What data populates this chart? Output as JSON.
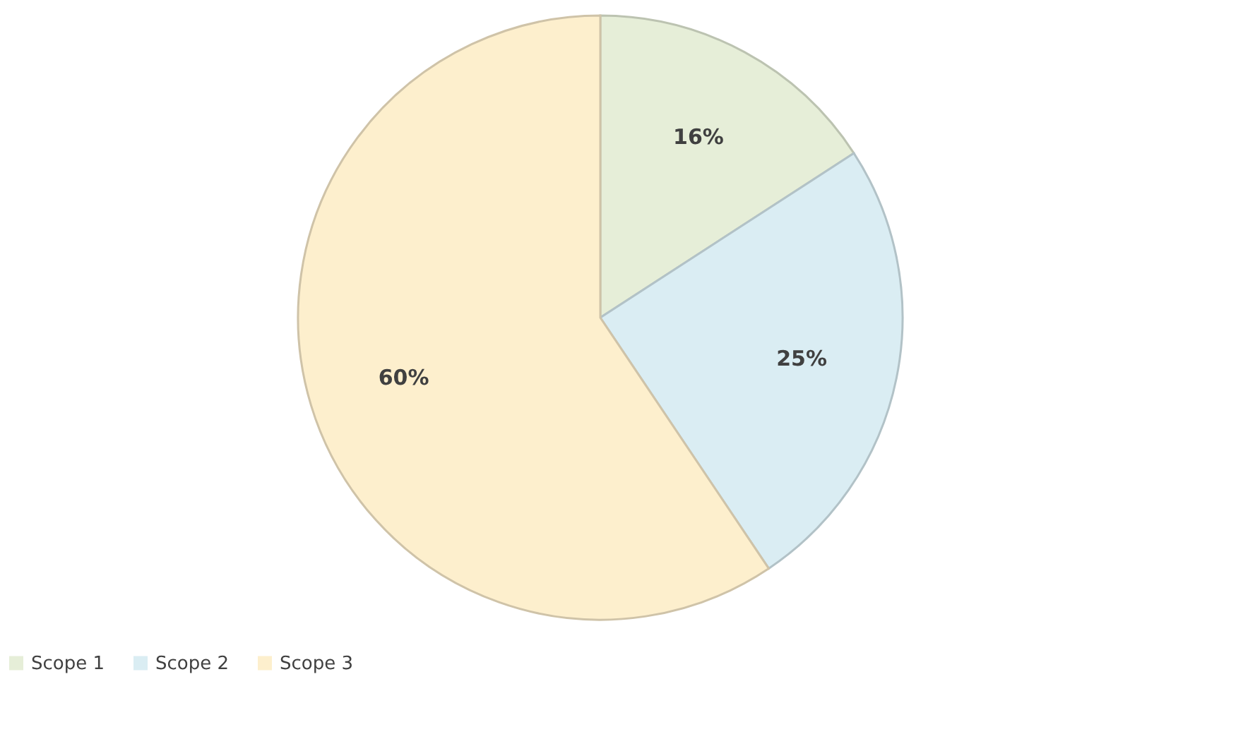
{
  "chart_data": {
    "type": "pie",
    "categories": [
      "Scope 1",
      "Scope 2",
      "Scope 3"
    ],
    "values": [
      16,
      25,
      60
    ],
    "colors": [
      "#e6eed8",
      "#daedf3",
      "#fdefcd"
    ],
    "value_labels": [
      "16%",
      "25%",
      "60%"
    ],
    "legend": "bottom"
  }
}
